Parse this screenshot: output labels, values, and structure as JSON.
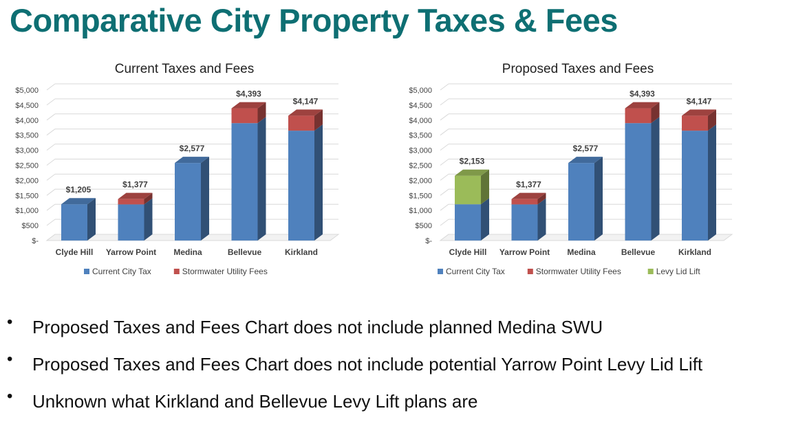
{
  "slide_title": "Comparative City Property Taxes & Fees",
  "colors": {
    "title": "#0e6f73",
    "current_city_tax": "#4f81bd",
    "stormwater_utility_fees": "#c0504d",
    "levy_lid_lift": "#9bbb59"
  },
  "chart_data": [
    {
      "type": "bar",
      "stacked": true,
      "three_d": true,
      "title": "Current Taxes and Fees",
      "categories": [
        "Clyde Hill",
        "Yarrow Point",
        "Medina",
        "Bellevue",
        "Kirkland"
      ],
      "series": [
        {
          "name": "Current City Tax",
          "color": "#4f81bd",
          "values": [
            1205,
            1200,
            2577,
            3900,
            3650
          ]
        },
        {
          "name": "Stormwater Utility Fees",
          "color": "#c0504d",
          "values": [
            0,
            177,
            0,
            493,
            497
          ]
        }
      ],
      "totals": [
        "$1,205",
        "$1,377",
        "$2,577",
        "$4,393",
        "$4,147"
      ],
      "ylim": [
        0,
        5000
      ],
      "yticks": [
        "$-",
        "$500",
        "$1,000",
        "$1,500",
        "$2,000",
        "$2,500",
        "$3,000",
        "$3,500",
        "$4,000",
        "$4,500",
        "$5,000"
      ],
      "grid": true,
      "legend": "bottom"
    },
    {
      "type": "bar",
      "stacked": true,
      "three_d": true,
      "title": "Proposed Taxes and Fees",
      "categories": [
        "Clyde Hill",
        "Yarrow Point",
        "Medina",
        "Bellevue",
        "Kirkland"
      ],
      "series": [
        {
          "name": "Current City Tax",
          "color": "#4f81bd",
          "values": [
            1205,
            1200,
            2577,
            3900,
            3650
          ]
        },
        {
          "name": "Stormwater Utility Fees",
          "color": "#c0504d",
          "values": [
            0,
            177,
            0,
            493,
            497
          ]
        },
        {
          "name": "Levy Lid Lift",
          "color": "#9bbb59",
          "values": [
            948,
            0,
            0,
            0,
            0
          ]
        }
      ],
      "totals": [
        "$2,153",
        "$1,377",
        "$2,577",
        "$4,393",
        "$4,147"
      ],
      "ylim": [
        0,
        5000
      ],
      "yticks": [
        "$-",
        "$500",
        "$1,000",
        "$1,500",
        "$2,000",
        "$2,500",
        "$3,000",
        "$3,500",
        "$4,000",
        "$4,500",
        "$5,000"
      ],
      "grid": true,
      "legend": "bottom"
    }
  ],
  "bullets": [
    {
      "marker": "•",
      "text": "Proposed Taxes and Fees Chart does not include planned Medina SWU"
    },
    {
      "marker": "•",
      "text": "Proposed Taxes and Fees Chart does not include potential Yarrow Point Levy Lid Lift"
    },
    {
      "marker": "•",
      "text": "Unknown what Kirkland and Bellevue Levy Lift plans are"
    }
  ]
}
